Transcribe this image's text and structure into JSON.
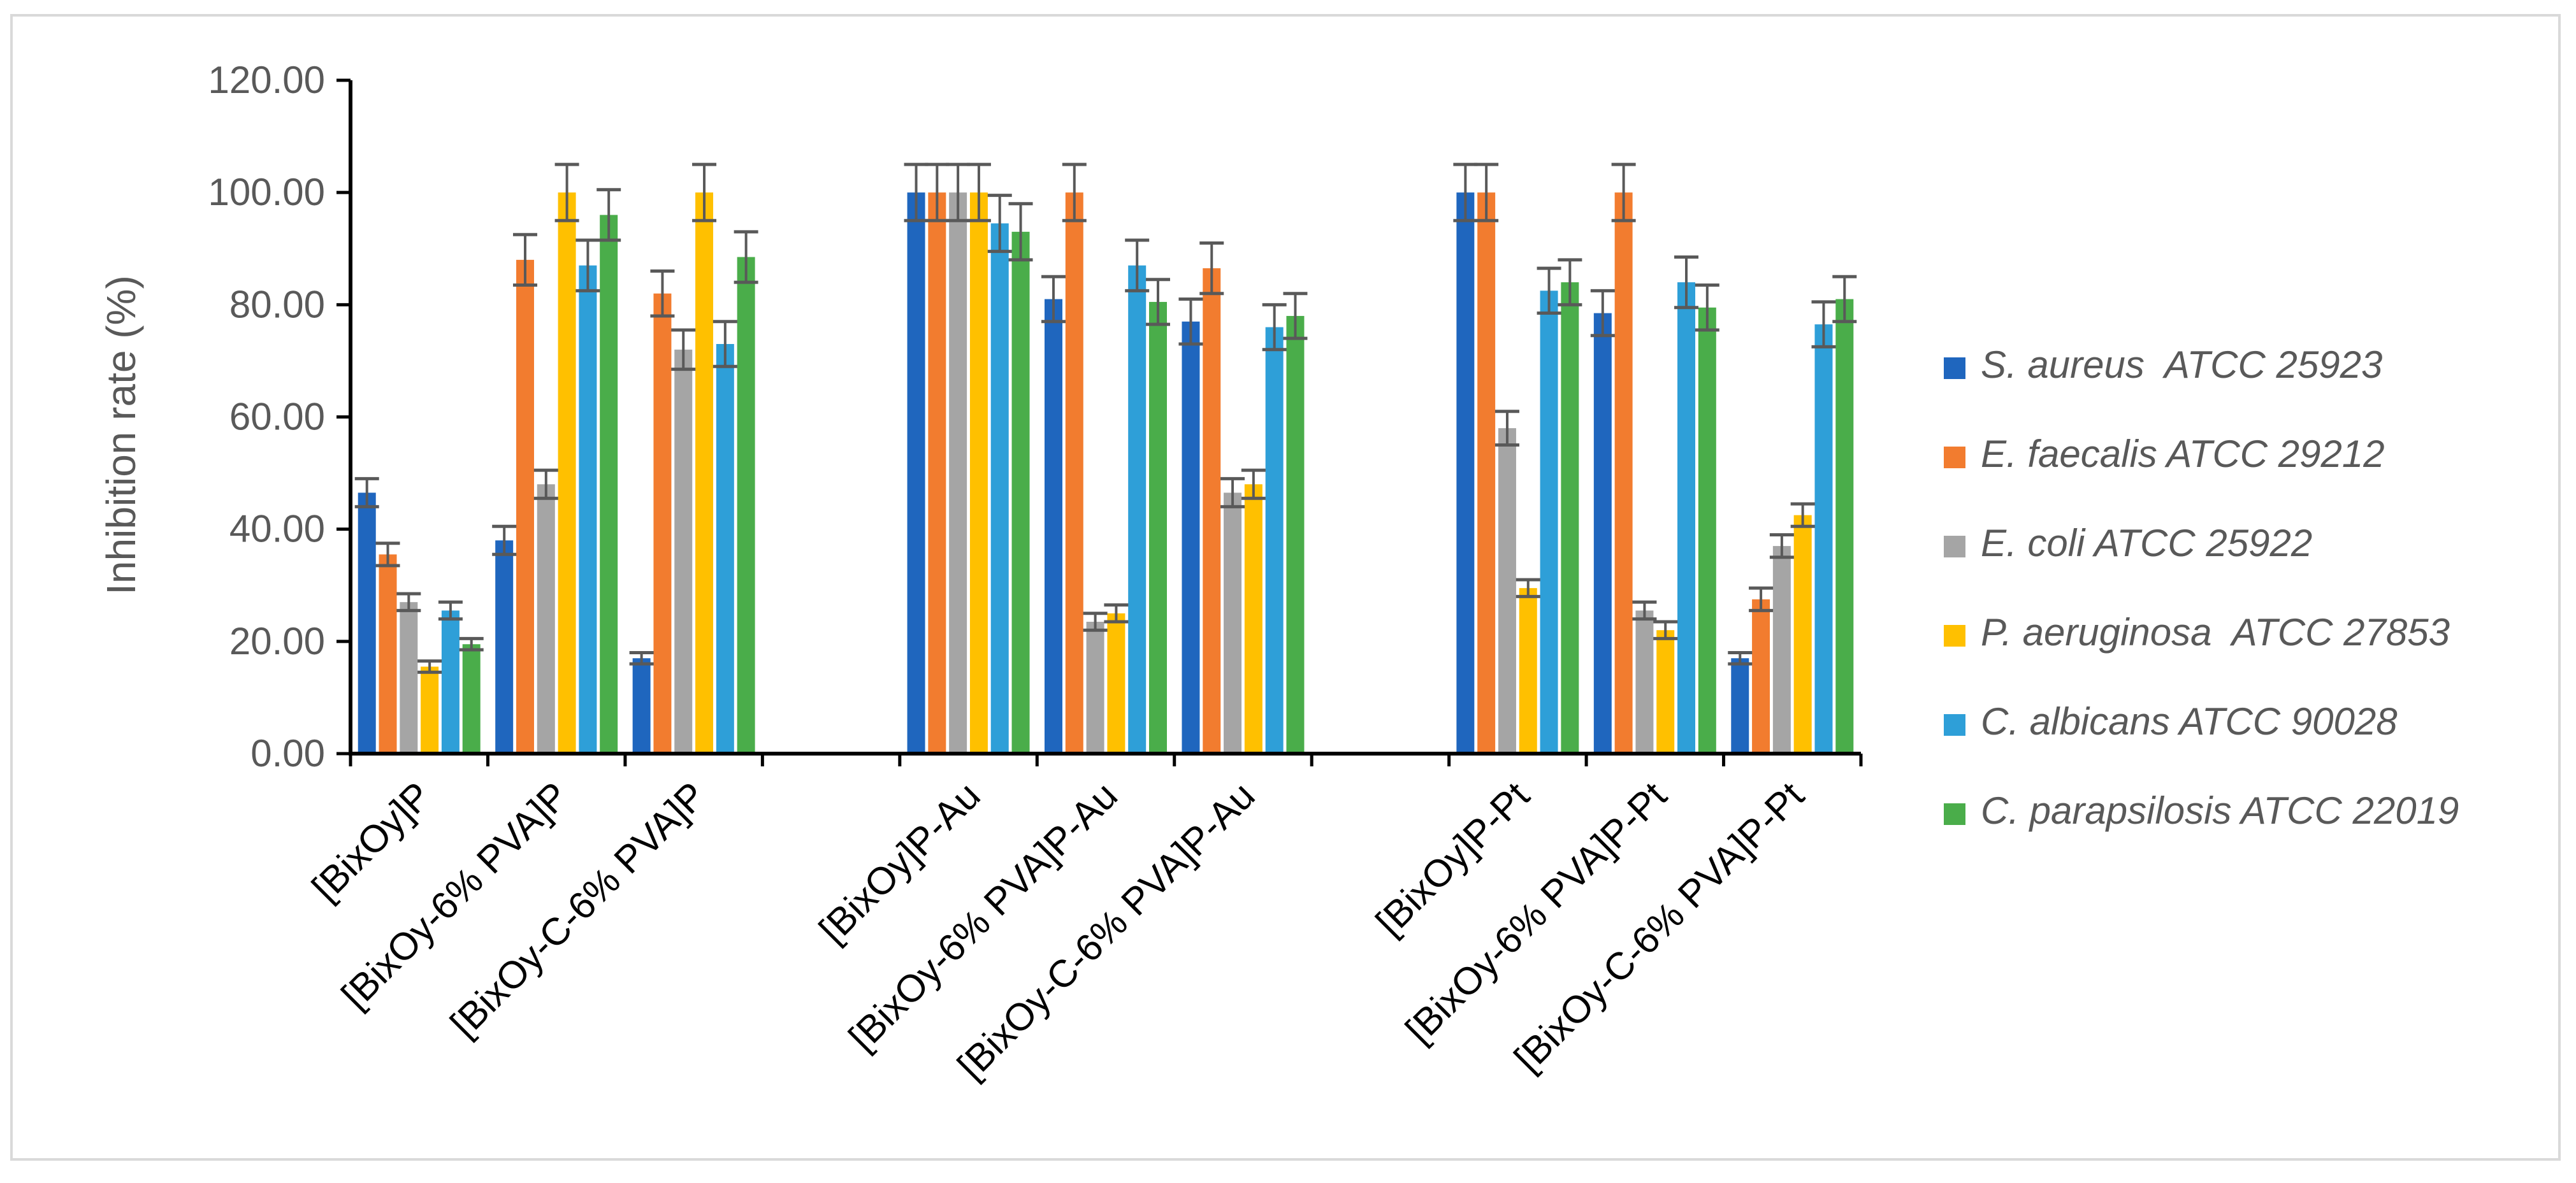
{
  "chart_data": {
    "type": "bar",
    "title": "",
    "xlabel": "",
    "ylabel": "Inhibition rate (%)",
    "ylim": [
      0,
      120
    ],
    "ytick_step": 20,
    "y_tick_labels": [
      "0.00",
      "20.00",
      "40.00",
      "60.00",
      "80.00",
      "100.00",
      "120.00"
    ],
    "legend_position": "right",
    "categories": [
      "[BixOy]P",
      "[BixOy-6% PVA]P",
      "[BixOy-C-6% PVA]P",
      "",
      "[BixOy]P-Au",
      "[BixOy-6% PVA]P-Au",
      "[BixOy-C-6% PVA]P-Au",
      "",
      "[BixOy]P-Pt",
      "[BixOy-6% PVA]P-Pt",
      "[BixOy-C-6% PVA]P-Pt"
    ],
    "series": [
      {
        "name": "S. aureus  ATCC 25923",
        "color": "#1f66be",
        "values": [
          46.5,
          38,
          17,
          null,
          100,
          81,
          77,
          null,
          100,
          78.5,
          17
        ],
        "errors": [
          2.5,
          2.5,
          1,
          null,
          5,
          4,
          4,
          null,
          5,
          4,
          1
        ]
      },
      {
        "name": "E. faecalis ATCC 29212",
        "color": "#f27c2f",
        "values": [
          35.5,
          88,
          82,
          null,
          100,
          100,
          86.5,
          null,
          100,
          100,
          27.5
        ],
        "errors": [
          2,
          4.5,
          4,
          null,
          5,
          5,
          4.5,
          null,
          5,
          5,
          2
        ]
      },
      {
        "name": "E. coli ATCC 25922",
        "color": "#a5a5a5",
        "values": [
          27,
          48,
          72,
          null,
          100,
          23.5,
          46.5,
          null,
          58,
          25.5,
          37
        ],
        "errors": [
          1.5,
          2.5,
          3.5,
          null,
          5,
          1.5,
          2.5,
          null,
          3,
          1.5,
          2
        ]
      },
      {
        "name": "P. aeruginosa  ATCC 27853",
        "color": "#ffc000",
        "values": [
          15.5,
          100,
          100,
          null,
          100,
          25,
          48,
          null,
          29.5,
          22,
          42.5
        ],
        "errors": [
          1,
          5,
          5,
          null,
          5,
          1.5,
          2.5,
          null,
          1.5,
          1.5,
          2
        ]
      },
      {
        "name": "C. albicans ATCC 90028",
        "color": "#2e9fd8",
        "values": [
          25.5,
          87,
          73,
          null,
          94.5,
          87,
          76,
          null,
          82.5,
          84,
          76.5
        ],
        "errors": [
          1.5,
          4.5,
          4,
          null,
          5,
          4.5,
          4,
          null,
          4,
          4.5,
          4
        ]
      },
      {
        "name": "C. parapsilosis ATCC 22019",
        "color": "#4aad4a",
        "values": [
          19.5,
          96,
          88.5,
          null,
          93,
          80.5,
          78,
          null,
          84,
          79.5,
          81
        ],
        "errors": [
          1,
          4.5,
          4.5,
          null,
          5,
          4,
          4,
          null,
          4,
          4,
          4
        ]
      }
    ]
  }
}
